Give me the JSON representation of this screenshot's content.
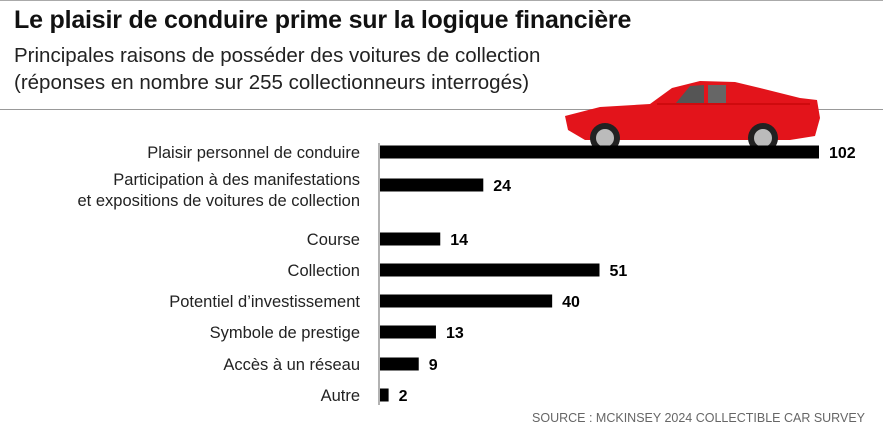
{
  "title": "Le plaisir de conduire prime sur la logique financière",
  "subtitle_lines": [
    "Principales raisons de posséder des voitures de collection",
    "(réponses en nombre sur 255 collectionneurs interrogés)"
  ],
  "source": "SOURCE : MCKINSEY 2024 COLLECTIBLE CAR SURVEY",
  "chart_data": {
    "type": "bar",
    "orientation": "horizontal",
    "title": "Le plaisir de conduire prime sur la logique financière",
    "categories": [
      [
        "Plaisir personnel de conduire"
      ],
      [
        "Participation à des manifestations",
        "et expositions de voitures de collection"
      ],
      [
        "Course"
      ],
      [
        "Collection"
      ],
      [
        "Potentiel d’investissement"
      ],
      [
        "Symbole de prestige"
      ],
      [
        "Accès à un réseau"
      ],
      [
        "Autre"
      ]
    ],
    "values": [
      102,
      24,
      14,
      51,
      40,
      13,
      9,
      2
    ],
    "xlim": [
      0,
      102
    ],
    "grid": false,
    "data_labels": true,
    "bar_color": "#000000",
    "illustration": "red-classic-car"
  }
}
